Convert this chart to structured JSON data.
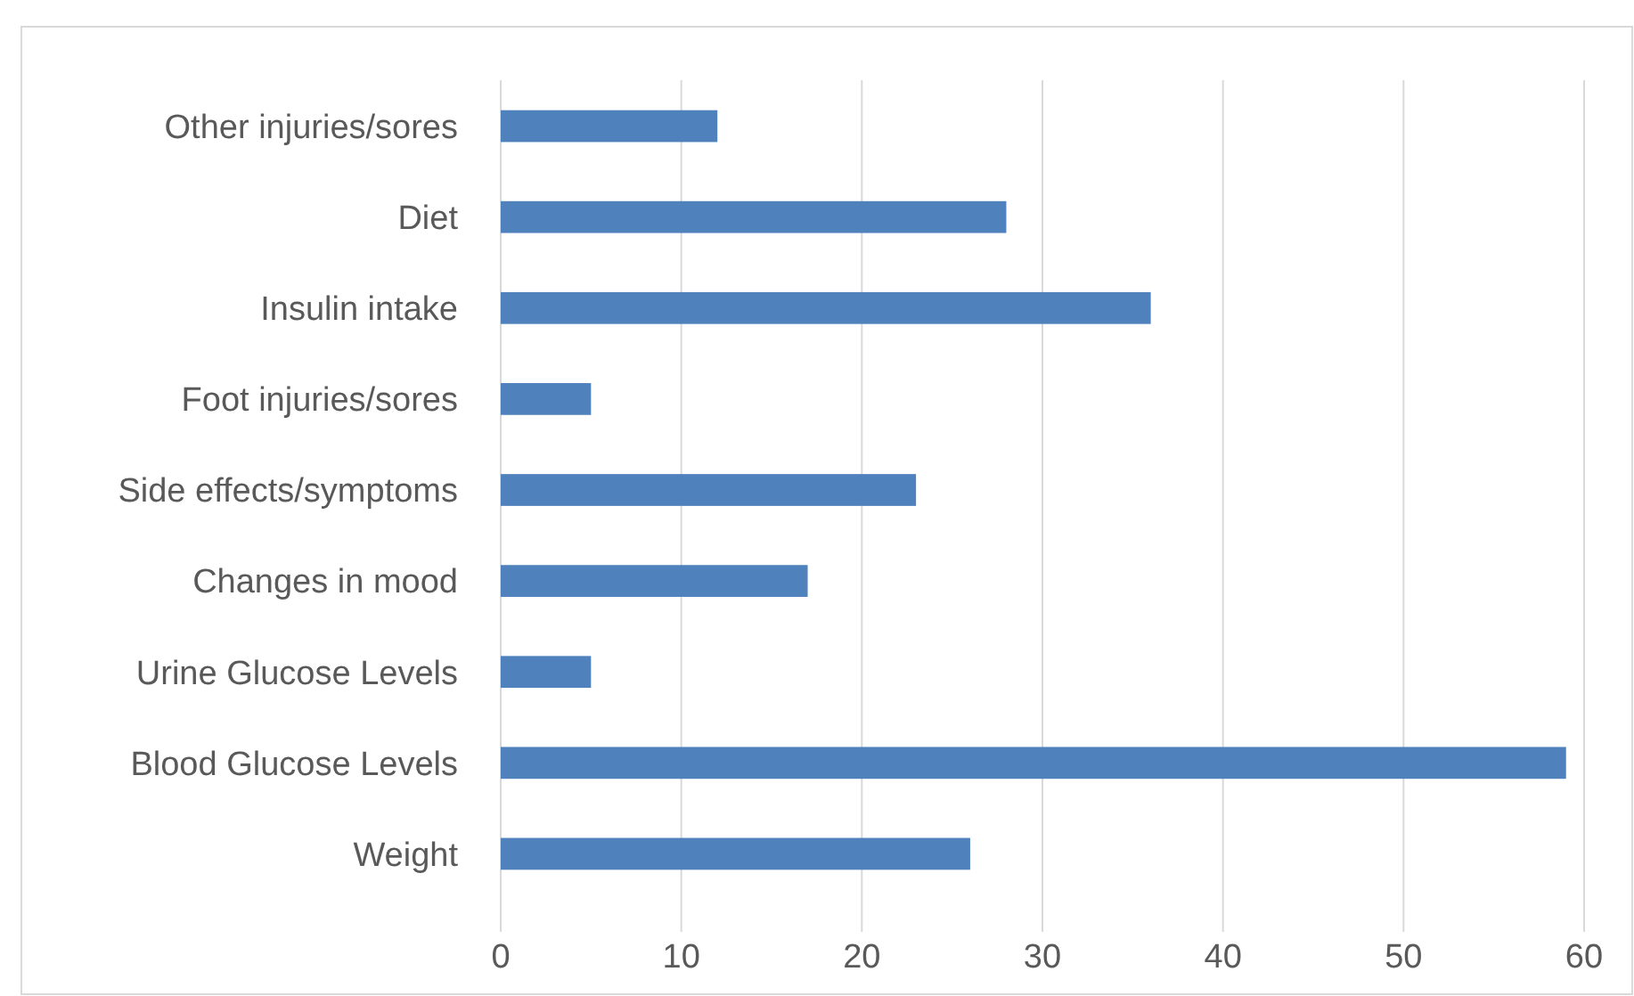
{
  "chart_data": {
    "type": "bar",
    "orientation": "horizontal",
    "categories": [
      "Other injuries/sores",
      "Diet",
      "Insulin intake",
      "Foot injuries/sores",
      "Side effects/symptoms",
      "Changes in mood",
      "Urine Glucose Levels",
      "Blood Glucose Levels",
      "Weight"
    ],
    "values": [
      12,
      28,
      36,
      5,
      23,
      17,
      5,
      59,
      26
    ],
    "color": "#4f81bd",
    "xlim": [
      0,
      60
    ],
    "xticks": [
      0,
      10,
      20,
      30,
      40,
      50,
      60
    ],
    "grid": "x"
  }
}
